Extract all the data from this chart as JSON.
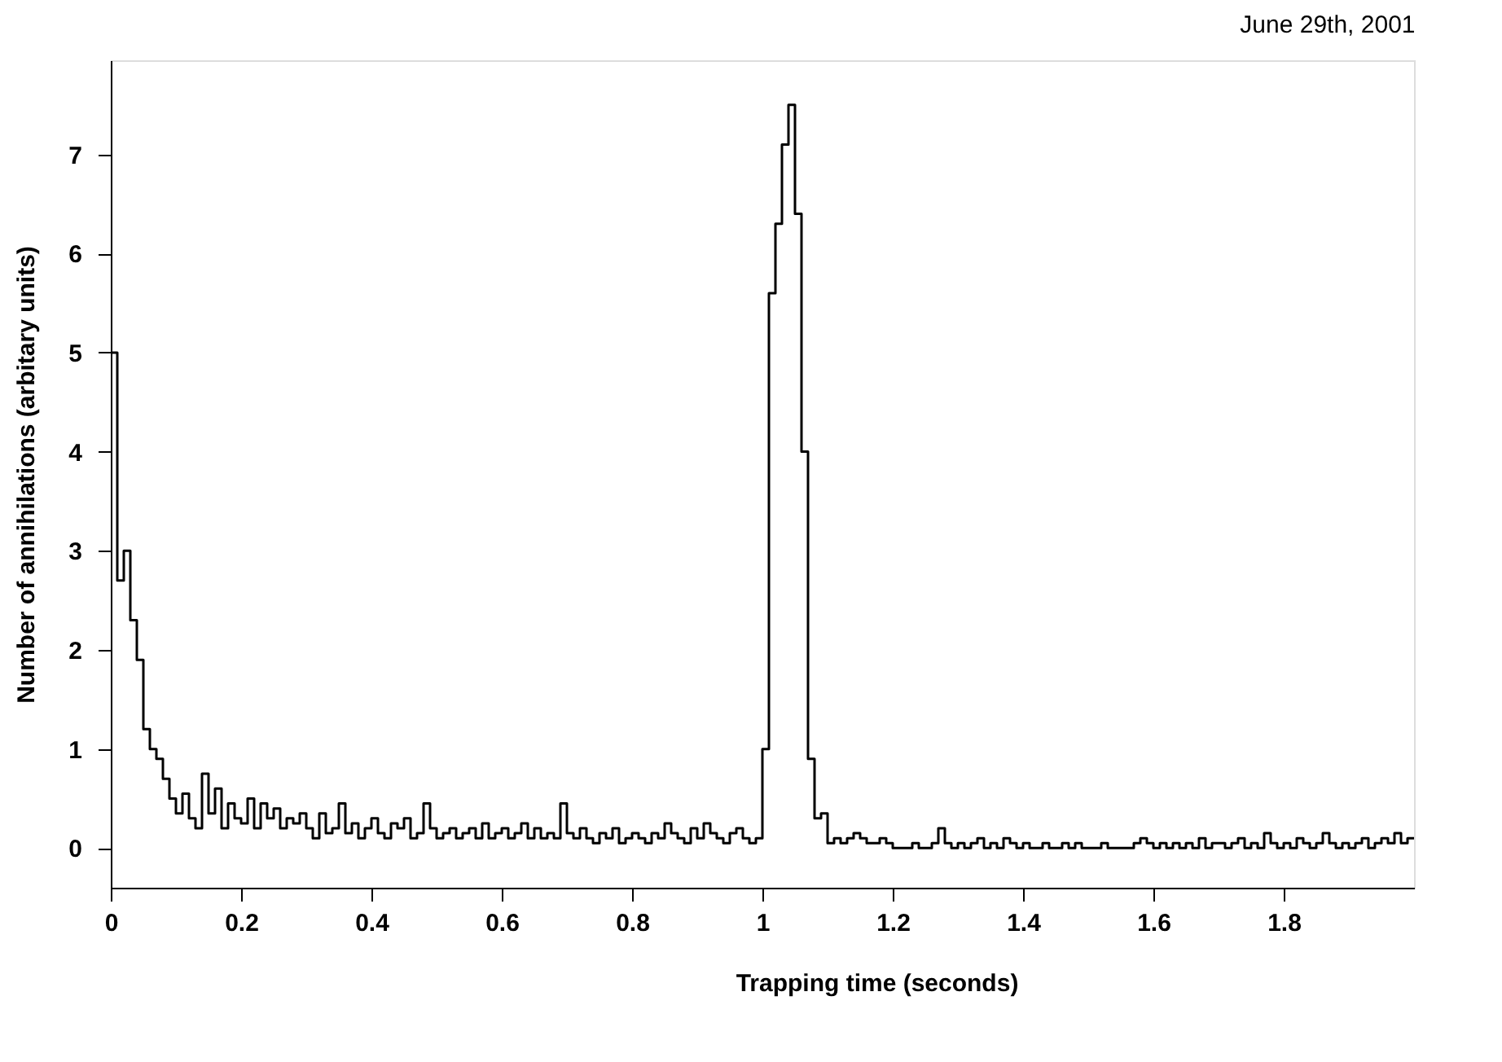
{
  "chart_data": {
    "type": "histogram",
    "xlabel": "Trapping  time            (seconds)",
    "ylabel": "Number of annihilations     (arbitary units)",
    "annotations": [
      "June 29th, 2001"
    ],
    "color": "#000000",
    "xlim": [
      0,
      2.0
    ],
    "ylim": [
      -0.4,
      7.95
    ],
    "xticks": [
      0,
      0.2,
      0.4,
      0.6,
      0.8,
      1,
      1.2,
      1.4,
      1.6,
      1.8
    ],
    "yticks": [
      0,
      1,
      2,
      3,
      4,
      5,
      6,
      7
    ],
    "grid": false,
    "bins": [
      0,
      0.01,
      0.02,
      0.03,
      0.04,
      0.05,
      0.06,
      0.07,
      0.08,
      0.09,
      0.1,
      0.11,
      0.12,
      0.13,
      0.14,
      0.15,
      0.16,
      0.17,
      0.18,
      0.19,
      0.2,
      0.21,
      0.22,
      0.23,
      0.24,
      0.25,
      0.26,
      0.27,
      0.28,
      0.29,
      0.3,
      0.31,
      0.32,
      0.33,
      0.34,
      0.35,
      0.36,
      0.37,
      0.38,
      0.39,
      0.4,
      0.41,
      0.42,
      0.43,
      0.44,
      0.45,
      0.46,
      0.47,
      0.48,
      0.49,
      0.5,
      0.51,
      0.52,
      0.53,
      0.54,
      0.55,
      0.56,
      0.57,
      0.58,
      0.59,
      0.6,
      0.61,
      0.62,
      0.63,
      0.64,
      0.65,
      0.66,
      0.67,
      0.68,
      0.69,
      0.7,
      0.71,
      0.72,
      0.73,
      0.74,
      0.75,
      0.76,
      0.77,
      0.78,
      0.79,
      0.8,
      0.81,
      0.82,
      0.83,
      0.84,
      0.85,
      0.86,
      0.87,
      0.88,
      0.89,
      0.9,
      0.91,
      0.92,
      0.93,
      0.94,
      0.95,
      0.96,
      0.97,
      0.98,
      0.99,
      1.0,
      1.01,
      1.02,
      1.03,
      1.04,
      1.05,
      1.06,
      1.07,
      1.08,
      1.09,
      1.1,
      1.11,
      1.12,
      1.13,
      1.14,
      1.15,
      1.16,
      1.17,
      1.18,
      1.19,
      1.2,
      1.21,
      1.22,
      1.23,
      1.24,
      1.25,
      1.26,
      1.27,
      1.28,
      1.29,
      1.3,
      1.31,
      1.32,
      1.33,
      1.34,
      1.35,
      1.36,
      1.37,
      1.38,
      1.39,
      1.4,
      1.41,
      1.42,
      1.43,
      1.44,
      1.45,
      1.46,
      1.47,
      1.48,
      1.49,
      1.5,
      1.51,
      1.52,
      1.53,
      1.54,
      1.55,
      1.56,
      1.57,
      1.58,
      1.59,
      1.6,
      1.61,
      1.62,
      1.63,
      1.64,
      1.65,
      1.66,
      1.67,
      1.68,
      1.69,
      1.7,
      1.71,
      1.72,
      1.73,
      1.74,
      1.75,
      1.76,
      1.77,
      1.78,
      1.79,
      1.8,
      1.81,
      1.82,
      1.83,
      1.84,
      1.85,
      1.86,
      1.87,
      1.88,
      1.89,
      1.9,
      1.91,
      1.92,
      1.93,
      1.94,
      1.95,
      1.96,
      1.97,
      1.98,
      1.99,
      2.0
    ],
    "values": [
      5.0,
      2.7,
      3.0,
      2.3,
      1.9,
      1.2,
      1.0,
      0.9,
      0.7,
      0.5,
      0.35,
      0.55,
      0.3,
      0.2,
      0.75,
      0.35,
      0.6,
      0.2,
      0.45,
      0.3,
      0.25,
      0.5,
      0.2,
      0.45,
      0.3,
      0.4,
      0.2,
      0.3,
      0.25,
      0.35,
      0.2,
      0.1,
      0.35,
      0.15,
      0.2,
      0.45,
      0.15,
      0.25,
      0.1,
      0.2,
      0.3,
      0.15,
      0.1,
      0.25,
      0.2,
      0.3,
      0.1,
      0.15,
      0.45,
      0.2,
      0.1,
      0.15,
      0.2,
      0.1,
      0.15,
      0.2,
      0.1,
      0.25,
      0.1,
      0.15,
      0.2,
      0.1,
      0.15,
      0.25,
      0.1,
      0.2,
      0.1,
      0.15,
      0.1,
      0.45,
      0.15,
      0.1,
      0.2,
      0.1,
      0.05,
      0.15,
      0.1,
      0.2,
      0.05,
      0.1,
      0.15,
      0.1,
      0.05,
      0.15,
      0.1,
      0.25,
      0.15,
      0.1,
      0.05,
      0.2,
      0.1,
      0.25,
      0.15,
      0.1,
      0.05,
      0.15,
      0.2,
      0.1,
      0.05,
      0.1,
      1.0,
      5.6,
      6.3,
      7.1,
      7.5,
      6.4,
      4.0,
      0.9,
      0.3,
      0.35,
      0.05,
      0.1,
      0.05,
      0.1,
      0.15,
      0.1,
      0.05,
      0.05,
      0.1,
      0.05,
      0.0,
      0.0,
      0.0,
      0.05,
      0.0,
      0.0,
      0.05,
      0.2,
      0.05,
      0.0,
      0.05,
      0.0,
      0.05,
      0.1,
      0.0,
      0.05,
      0.0,
      0.1,
      0.05,
      0.0,
      0.05,
      0.0,
      0.0,
      0.05,
      0.0,
      0.0,
      0.05,
      0.0,
      0.05,
      0.0,
      0.0,
      0.0,
      0.05,
      0.0,
      0.0,
      0.0,
      0.0,
      0.05,
      0.1,
      0.05,
      0.0,
      0.05,
      0.0,
      0.05,
      0.0,
      0.05,
      0.0,
      0.1,
      0.0,
      0.05,
      0.05,
      0.0,
      0.05,
      0.1,
      0.0,
      0.05,
      0.0,
      0.15,
      0.05,
      0.0,
      0.05,
      0.0,
      0.1,
      0.05,
      0.0,
      0.05,
      0.15,
      0.05,
      0.0,
      0.05,
      0.0,
      0.05,
      0.1,
      0.0,
      0.05,
      0.1,
      0.05,
      0.15,
      0.05,
      0.1
    ]
  }
}
